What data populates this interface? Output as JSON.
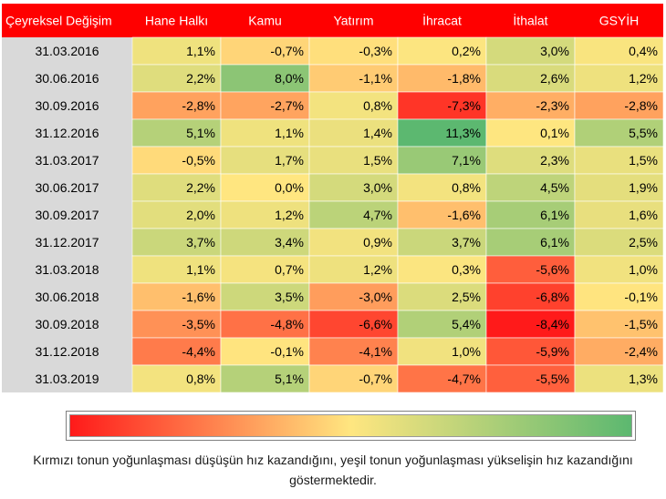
{
  "chart_data": {
    "type": "heatmap",
    "corner_label": "Çeyreksel Değişim",
    "columns": [
      "Hane Halkı",
      "Kamu",
      "Yatırım",
      "İhracat",
      "İthalat",
      "GSYİH"
    ],
    "rows": [
      {
        "label": "31.03.2016",
        "values": [
          1.1,
          -0.7,
          -0.3,
          0.2,
          3.0,
          0.4
        ],
        "text": [
          "1,1%",
          "-0,7%",
          "-0,3%",
          "0,2%",
          "3,0%",
          "0,4%"
        ]
      },
      {
        "label": "30.06.2016",
        "values": [
          2.2,
          8.0,
          -1.1,
          -1.8,
          2.6,
          1.2
        ],
        "text": [
          "2,2%",
          "8,0%",
          "-1,1%",
          "-1,8%",
          "2,6%",
          "1,2%"
        ]
      },
      {
        "label": "30.09.2016",
        "values": [
          -2.8,
          -2.7,
          0.8,
          -7.3,
          -2.3,
          -2.8
        ],
        "text": [
          "-2,8%",
          "-2,7%",
          "0,8%",
          "-7,3%",
          "-2,3%",
          "-2,8%"
        ]
      },
      {
        "label": "31.12.2016",
        "values": [
          5.1,
          1.1,
          1.4,
          11.3,
          0.1,
          5.5
        ],
        "text": [
          "5,1%",
          "1,1%",
          "1,4%",
          "11,3%",
          "0,1%",
          "5,5%"
        ]
      },
      {
        "label": "31.03.2017",
        "values": [
          -0.5,
          1.7,
          1.5,
          7.1,
          2.3,
          1.5
        ],
        "text": [
          "-0,5%",
          "1,7%",
          "1,5%",
          "7,1%",
          "2,3%",
          "1,5%"
        ]
      },
      {
        "label": "30.06.2017",
        "values": [
          2.2,
          0.0,
          3.0,
          0.8,
          4.5,
          1.9
        ],
        "text": [
          "2,2%",
          "0,0%",
          "3,0%",
          "0,8%",
          "4,5%",
          "1,9%"
        ]
      },
      {
        "label": "30.09.2017",
        "values": [
          2.0,
          1.2,
          4.7,
          -1.6,
          6.1,
          1.6
        ],
        "text": [
          "2,0%",
          "1,2%",
          "4,7%",
          "-1,6%",
          "6,1%",
          "1,6%"
        ]
      },
      {
        "label": "31.12.2017",
        "values": [
          3.7,
          3.4,
          0.9,
          3.7,
          6.1,
          2.5
        ],
        "text": [
          "3,7%",
          "3,4%",
          "0,9%",
          "3,7%",
          "6,1%",
          "2,5%"
        ]
      },
      {
        "label": "31.03.2018",
        "values": [
          1.1,
          0.7,
          1.2,
          0.3,
          -5.6,
          1.0
        ],
        "text": [
          "1,1%",
          "0,7%",
          "1,2%",
          "0,3%",
          "-5,6%",
          "1,0%"
        ]
      },
      {
        "label": "30.06.2018",
        "values": [
          -1.6,
          3.5,
          -3.0,
          2.5,
          -6.8,
          -0.1
        ],
        "text": [
          "-1,6%",
          "3,5%",
          "-3,0%",
          "2,5%",
          "-6,8%",
          "-0,1%"
        ]
      },
      {
        "label": "30.09.2018",
        "values": [
          -3.5,
          -4.8,
          -6.6,
          5.4,
          -8.4,
          -1.5
        ],
        "text": [
          "-3,5%",
          "-4,8%",
          "-6,6%",
          "5,4%",
          "-8,4%",
          "-1,5%"
        ]
      },
      {
        "label": "31.12.2018",
        "values": [
          -4.4,
          -0.1,
          -4.1,
          1.0,
          -5.9,
          -2.4
        ],
        "text": [
          "-4,4%",
          "-0,1%",
          "-4,1%",
          "1,0%",
          "-5,9%",
          "-2,4%"
        ]
      },
      {
        "label": "31.03.2019",
        "values": [
          0.8,
          5.1,
          -0.7,
          -4.7,
          -5.5,
          1.3
        ],
        "text": [
          "0,8%",
          "5,1%",
          "-0,7%",
          "-4,7%",
          "-5,5%",
          "1,3%"
        ]
      }
    ],
    "color_scale": {
      "low": "#ff1a1a",
      "mid": "#ffe680",
      "high": "#5cb870",
      "header_bg": "#ff0000",
      "header_text": "#ffffff",
      "row_label_bg": "#d9d9d9"
    },
    "caption": "Kırmızı  tonun yoğunlaşması düşüşün hız kazandığını, yeşil tonun yoğunlaşması yükselişin hız kazandığını göstermektedir."
  }
}
